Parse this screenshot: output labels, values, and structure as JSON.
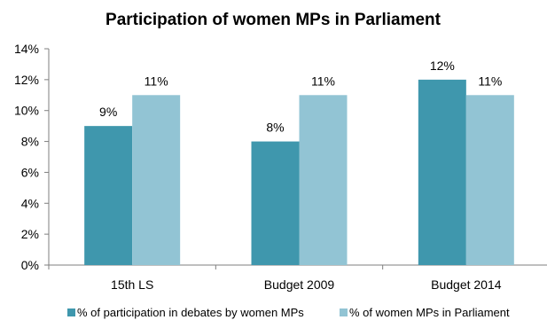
{
  "chart_data": {
    "type": "bar",
    "title": "Participation of women MPs in Parliament",
    "xlabel": "",
    "ylabel": "",
    "categories": [
      "15th LS",
      "Budget 2009",
      "Budget 2014"
    ],
    "series": [
      {
        "name": "% of participation in debates by women MPs",
        "values": [
          9,
          8,
          12
        ],
        "labels": [
          "9%",
          "8%",
          "12%"
        ],
        "color": "#3f97ad"
      },
      {
        "name": "% of women MPs in Parliament",
        "values": [
          11,
          11,
          11
        ],
        "labels": [
          "11%",
          "11%",
          "11%"
        ],
        "color": "#92c4d4"
      }
    ],
    "ylim": [
      0,
      14
    ],
    "yticks": [
      0,
      2,
      4,
      6,
      8,
      10,
      12,
      14
    ],
    "ytick_labels": [
      "0%",
      "2%",
      "4%",
      "6%",
      "8%",
      "10%",
      "12%",
      "14%"
    ],
    "grid": false,
    "legend_position": "bottom"
  }
}
